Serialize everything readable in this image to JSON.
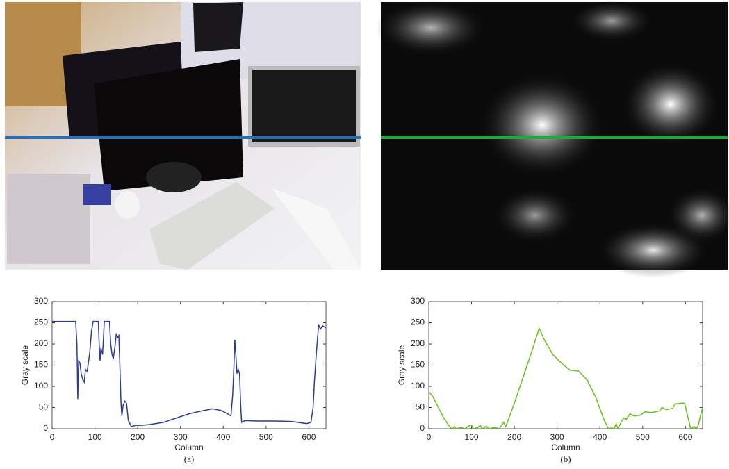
{
  "chart_data": [
    {
      "type": "line",
      "caption": "(a)",
      "xlabel": "Column",
      "ylabel": "Gray scale",
      "xlim": [
        0,
        640
      ],
      "ylim": [
        0,
        300
      ],
      "xticks": [
        0,
        100,
        200,
        300,
        400,
        500,
        600
      ],
      "yticks": [
        0,
        50,
        100,
        150,
        200,
        250,
        300
      ],
      "x": [
        0,
        55,
        58,
        60,
        62,
        65,
        68,
        72,
        75,
        78,
        82,
        88,
        92,
        96,
        108,
        110,
        112,
        114,
        118,
        122,
        134,
        137,
        140,
        143,
        147,
        150,
        153,
        156,
        158,
        161,
        163,
        166,
        170,
        174,
        178,
        185,
        195,
        210,
        230,
        260,
        290,
        320,
        350,
        375,
        395,
        410,
        418,
        422,
        425,
        427,
        430,
        432,
        435,
        438,
        441,
        443,
        450,
        480,
        520,
        560,
        595,
        605,
        610,
        613,
        617,
        620,
        623,
        627,
        632,
        640
      ],
      "series": [
        {
          "color": "#2e3d94",
          "values": [
            253,
            253,
            200,
            70,
            160,
            155,
            130,
            115,
            110,
            140,
            135,
            180,
            230,
            253,
            253,
            200,
            160,
            190,
            175,
            253,
            253,
            200,
            175,
            165,
            195,
            225,
            215,
            220,
            160,
            60,
            30,
            55,
            65,
            60,
            20,
            5,
            8,
            8,
            10,
            15,
            25,
            35,
            42,
            47,
            43,
            35,
            30,
            80,
            150,
            210,
            165,
            130,
            140,
            130,
            50,
            15,
            19,
            18,
            18,
            17,
            12,
            15,
            50,
            110,
            170,
            210,
            245,
            235,
            243,
            238
          ]
        }
      ]
    },
    {
      "type": "line",
      "caption": "(b)",
      "xlabel": "Column",
      "ylabel": "Gray scale",
      "xlim": [
        0,
        640
      ],
      "ylim": [
        0,
        300
      ],
      "xticks": [
        0,
        100,
        200,
        300,
        400,
        500,
        600
      ],
      "yticks": [
        0,
        50,
        100,
        150,
        200,
        250,
        300
      ],
      "x": [
        0,
        10,
        20,
        35,
        50,
        55,
        60,
        65,
        75,
        85,
        95,
        100,
        104,
        115,
        120,
        125,
        135,
        140,
        155,
        165,
        175,
        180,
        200,
        220,
        240,
        258,
        270,
        290,
        310,
        330,
        350,
        370,
        390,
        410,
        420,
        428,
        433,
        438,
        442,
        448,
        455,
        462,
        470,
        480,
        495,
        505,
        520,
        540,
        545,
        555,
        570,
        575,
        590,
        598,
        608,
        612,
        620,
        625,
        630,
        635,
        640
      ],
      "series": [
        {
          "color": "#66c21a",
          "values": [
            88,
            75,
            55,
            25,
            3,
            0,
            5,
            0,
            3,
            0,
            8,
            8,
            0,
            3,
            8,
            0,
            6,
            0,
            3,
            0,
            15,
            5,
            60,
            120,
            180,
            237,
            210,
            175,
            155,
            138,
            136,
            115,
            75,
            20,
            0,
            2,
            0,
            12,
            0,
            12,
            25,
            22,
            35,
            30,
            32,
            40,
            38,
            42,
            50,
            45,
            48,
            58,
            60,
            60,
            18,
            0,
            5,
            0,
            8,
            30,
            50
          ]
        }
      ]
    }
  ]
}
